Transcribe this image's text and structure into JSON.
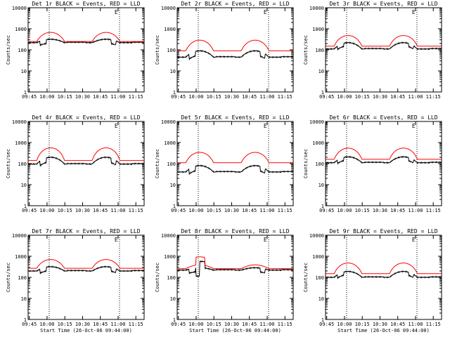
{
  "chart_data": {
    "type": "line",
    "yscale": "log",
    "ylim": [
      1,
      10000
    ],
    "ylabel": "Counts/sec",
    "xlabel": "Start Time (26-Oct-06 09:44:00)",
    "x_ticks": [
      "09:45",
      "10:00",
      "10:15",
      "10:30",
      "10:45",
      "11:00",
      "11:15"
    ],
    "y_ticks": [
      "1",
      "10",
      "100",
      "1000",
      "10000"
    ],
    "colors": {
      "events": "#000000",
      "lld": "#ff0000"
    },
    "marker": "E",
    "panels": [
      {
        "title": "Det 1r BLACK = Events, RED = LLD",
        "show_xlabel": false,
        "events_base": 220,
        "events_amp": 1.45,
        "lld_base": 250,
        "lld_amp": 2.7,
        "saa_drop": 0.65
      },
      {
        "title": "Det 2r BLACK = Events, RED = LLD",
        "show_xlabel": false,
        "events_base": 45,
        "events_amp": 2.0,
        "lld_base": 90,
        "lld_amp": 3.2,
        "saa_drop": 0.6
      },
      {
        "title": "Det 3r BLACK = Events, RED = LLD",
        "show_xlabel": false,
        "events_base": 110,
        "events_amp": 2.0,
        "lld_base": 150,
        "lld_amp": 3.2,
        "saa_drop": 0.7
      },
      {
        "title": "Det 4r BLACK = Events, RED = LLD",
        "show_xlabel": false,
        "events_base": 95,
        "events_amp": 2.1,
        "lld_base": 140,
        "lld_amp": 4.0,
        "saa_drop": 0.6
      },
      {
        "title": "Det 5r BLACK = Events, RED = LLD",
        "show_xlabel": false,
        "events_base": 40,
        "events_amp": 2.0,
        "lld_base": 110,
        "lld_amp": 3.1,
        "saa_drop": 0.6
      },
      {
        "title": "Det 6r BLACK = Events, RED = LLD",
        "show_xlabel": false,
        "events_base": 110,
        "events_amp": 1.9,
        "lld_base": 160,
        "lld_amp": 3.4,
        "saa_drop": 0.7
      },
      {
        "title": "Det 7r BLACK = Events, RED = LLD",
        "show_xlabel": true,
        "events_base": 200,
        "events_amp": 1.6,
        "lld_base": 270,
        "lld_amp": 2.6,
        "saa_drop": 0.65
      },
      {
        "title": "Det 8r BLACK = Events, RED = LLD",
        "show_xlabel": true,
        "events_base": 220,
        "events_amp": 1.3,
        "lld_base": 260,
        "lld_amp": 1.5,
        "saa_drop": 0.65,
        "spike": true
      },
      {
        "title": "Det 9r BLACK = Events, RED = LLD",
        "show_xlabel": true,
        "events_base": 100,
        "events_amp": 1.9,
        "lld_base": 150,
        "lld_amp": 3.2,
        "saa_drop": 0.7
      }
    ]
  }
}
